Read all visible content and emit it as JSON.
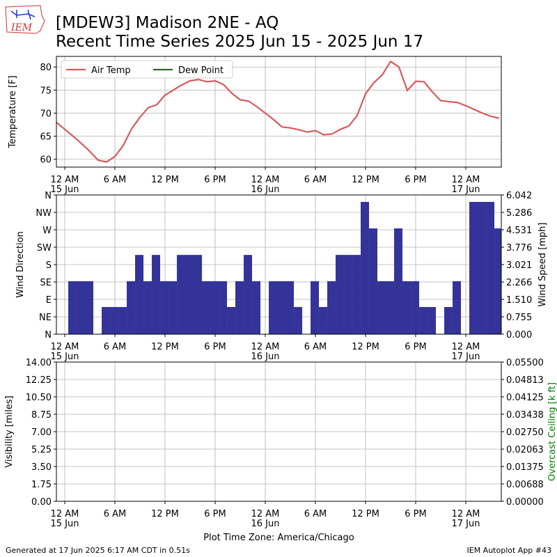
{
  "header": {
    "title": "[MDEW3] Madison 2NE - AQ",
    "subtitle": "Recent Time Series 2025 Jun 15 - 2025 Jun 17",
    "logo_text": "IEM"
  },
  "footer": {
    "left": "Generated at 17 Jun 2025 6:17 AM CDT in 0.51s",
    "right": "IEM Autoplot App #43"
  },
  "chart_data": [
    {
      "type": "line",
      "y_label": "Temperature [F]",
      "grid": true,
      "legend": "upper left",
      "xlim": [
        -1,
        52.25
      ],
      "xticks": [
        {
          "value": 0,
          "label": "12 AM\n15 Jun"
        },
        {
          "value": 6,
          "label": "6 AM"
        },
        {
          "value": 12,
          "label": "12 PM"
        },
        {
          "value": 18,
          "label": "6 PM"
        },
        {
          "value": 24,
          "label": "12 AM\n16 Jun"
        },
        {
          "value": 30,
          "label": "6 AM"
        },
        {
          "value": 36,
          "label": "12 PM"
        },
        {
          "value": 42,
          "label": "6 PM"
        },
        {
          "value": 48,
          "label": "12 AM\n17 Jun"
        }
      ],
      "ylim": [
        58.3,
        82.3
      ],
      "yticks": [
        60,
        65,
        70,
        75,
        80
      ],
      "x": [
        -1,
        0,
        1,
        2,
        3,
        4,
        5,
        6,
        7,
        8,
        9,
        10,
        11,
        12,
        13,
        14,
        15,
        16,
        17,
        18,
        19,
        20,
        21,
        22,
        23,
        24,
        25,
        26,
        27,
        28,
        29,
        30,
        31,
        32,
        33,
        34,
        35,
        36,
        37,
        38,
        39,
        40,
        41,
        42,
        43,
        44,
        45,
        46,
        47,
        48,
        49,
        50,
        51,
        52
      ],
      "series": [
        {
          "name": "Air Temp",
          "color": "#d9595c",
          "values": [
            68.0,
            66.5,
            65.0,
            63.4,
            61.7,
            59.8,
            59.4,
            60.6,
            63.0,
            66.6,
            69.1,
            71.2,
            71.8,
            73.9,
            75.0,
            76.1,
            77.0,
            77.3,
            76.8,
            77.0,
            76.2,
            74.3,
            72.9,
            72.6,
            71.4,
            70.0,
            68.6,
            67.0,
            66.8,
            66.4,
            65.9,
            66.2,
            65.3,
            65.5,
            66.5,
            67.2,
            69.5,
            74.2,
            76.6,
            78.3,
            81.2,
            80.0,
            74.9,
            76.9,
            76.8,
            74.6,
            72.7,
            72.5,
            72.3,
            71.6,
            70.8,
            70.0,
            69.3,
            68.9
          ]
        },
        {
          "name": "Dew Point",
          "color": "#2d6a2d",
          "values": [
            null,
            null,
            null,
            null,
            null,
            null,
            null,
            null,
            null,
            null,
            null,
            null,
            null,
            null,
            null,
            null,
            null,
            null,
            null,
            null,
            null,
            null,
            null,
            null,
            null,
            null,
            null,
            null,
            null,
            null,
            null,
            null,
            null,
            null,
            null,
            null,
            null,
            null,
            null,
            null,
            null,
            null,
            null,
            null,
            null,
            null,
            null,
            null,
            null,
            null,
            null,
            null,
            null,
            null
          ]
        }
      ]
    },
    {
      "type": "bar",
      "y_label": "Wind Direction",
      "y2_label": "Wind Speed [mph]",
      "grid": true,
      "xlim": [
        -1,
        52.25
      ],
      "xticks": [
        {
          "value": 0,
          "label": "12 AM\n15 Jun"
        },
        {
          "value": 6,
          "label": "6 AM"
        },
        {
          "value": 12,
          "label": "12 PM"
        },
        {
          "value": 18,
          "label": "6 PM"
        },
        {
          "value": 24,
          "label": "12 AM\n16 Jun"
        },
        {
          "value": 30,
          "label": "6 AM"
        },
        {
          "value": 36,
          "label": "12 PM"
        },
        {
          "value": 42,
          "label": "6 PM"
        },
        {
          "value": 48,
          "label": "12 AM\n17 Jun"
        }
      ],
      "ylim": [
        0,
        360
      ],
      "yticks": [
        {
          "value": 0,
          "label": "N"
        },
        {
          "value": 45,
          "label": "NE"
        },
        {
          "value": 90,
          "label": "E"
        },
        {
          "value": 135,
          "label": "SE"
        },
        {
          "value": 180,
          "label": "S"
        },
        {
          "value": 225,
          "label": "SW"
        },
        {
          "value": 270,
          "label": "W"
        },
        {
          "value": 315,
          "label": "NW"
        },
        {
          "value": 360,
          "label": "N"
        }
      ],
      "y2lim": [
        0,
        6.042
      ],
      "y2ticks": [
        {
          "value": 0,
          "label": "0.000"
        },
        0.755,
        {
          "value": 1.51,
          "label": "1.510"
        },
        2.266,
        3.021,
        3.776,
        4.531,
        5.286,
        6.042
      ],
      "color": "#333399",
      "axis": "y2",
      "x": [
        0.92,
        1.92,
        2.92,
        3.92,
        4.92,
        5.92,
        6.92,
        7.92,
        8.92,
        9.92,
        10.92,
        11.92,
        12.92,
        13.92,
        14.92,
        15.92,
        16.92,
        17.92,
        18.92,
        19.92,
        20.92,
        21.92,
        22.92,
        23.92,
        24.92,
        25.92,
        26.92,
        27.92,
        28.92,
        29.92,
        30.92,
        31.92,
        32.92,
        33.92,
        34.92,
        35.92,
        36.92,
        37.92,
        38.92,
        39.92,
        40.92,
        41.92,
        42.92,
        43.92,
        44.92,
        45.92,
        46.92,
        47.92,
        48.92,
        49.92,
        50.92,
        51.92
      ],
      "values": [
        2.3,
        2.3,
        2.3,
        0,
        1.18,
        1.18,
        1.18,
        2.3,
        3.44,
        2.3,
        3.44,
        2.3,
        2.3,
        3.44,
        3.44,
        3.44,
        2.3,
        2.3,
        2.3,
        1.18,
        2.3,
        3.44,
        2.3,
        0,
        2.3,
        2.3,
        2.3,
        1.18,
        0,
        2.3,
        1.18,
        2.3,
        3.44,
        3.44,
        3.44,
        5.74,
        4.59,
        2.3,
        2.3,
        4.59,
        2.3,
        2.3,
        1.18,
        1.18,
        0,
        1.18,
        2.3,
        0,
        5.74,
        5.74,
        5.74,
        4.59
      ]
    },
    {
      "type": "line",
      "y_label": "Visibility [miles]",
      "y2_label": "Overcast Ceiling [k ft]",
      "y2_label_color": "green",
      "x_label": "Plot Time Zone: America/Chicago",
      "grid": true,
      "xlim": [
        -1,
        52.25
      ],
      "xticks": [
        {
          "value": 0,
          "label": "12 AM\n15 Jun"
        },
        {
          "value": 6,
          "label": "6 AM"
        },
        {
          "value": 12,
          "label": "12 PM"
        },
        {
          "value": 18,
          "label": "6 PM"
        },
        {
          "value": 24,
          "label": "12 AM\n16 Jun"
        },
        {
          "value": 30,
          "label": "6 AM"
        },
        {
          "value": 36,
          "label": "12 PM"
        },
        {
          "value": 42,
          "label": "6 PM"
        },
        {
          "value": 48,
          "label": "12 AM\n17 Jun"
        }
      ],
      "ylim": [
        0,
        14
      ],
      "yticks": [
        {
          "value": 0,
          "label": "0.00"
        },
        1.75,
        {
          "value": 3.5,
          "label": "3.50"
        },
        5.25,
        {
          "value": 7,
          "label": "7.00"
        },
        8.75,
        {
          "value": 10.5,
          "label": "10.50"
        },
        12.25,
        {
          "value": 14,
          "label": "14.00"
        }
      ],
      "y2lim": [
        0,
        0.055
      ],
      "y2ticks": [
        {
          "value": 0,
          "label": "0.00000"
        },
        {
          "value": 0.006875,
          "label": "0.00688"
        },
        0.01375,
        {
          "value": 0.020625,
          "label": "0.02063"
        },
        {
          "value": 0.0275,
          "label": "0.02750"
        },
        {
          "value": 0.034375,
          "label": "0.03438"
        },
        0.04125,
        {
          "value": 0.048125,
          "label": "0.04813"
        },
        {
          "value": 0.055,
          "label": "0.05500"
        }
      ],
      "x": [],
      "series": []
    }
  ]
}
